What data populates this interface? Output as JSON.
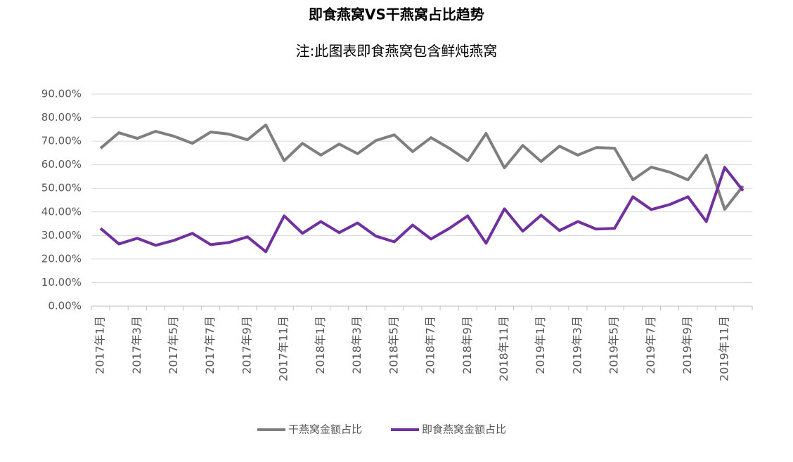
{
  "chart_data": {
    "type": "line",
    "title": "即食燕窝VS干燕窝占比趋势",
    "subtitle": "注:此图表即食燕窝包含鲜炖燕窝",
    "categories": [
      "2017年1月",
      null,
      "2017年3月",
      null,
      "2017年5月",
      null,
      "2017年7月",
      null,
      "2017年9月",
      null,
      "2017年11月",
      null,
      "2018年1月",
      null,
      "2018年3月",
      null,
      "2018年5月",
      null,
      "2018年7月",
      null,
      "2018年9月",
      null,
      "2018年11月",
      null,
      "2019年1月",
      null,
      "2019年3月",
      null,
      "2019年5月",
      null,
      "2019年7月",
      null,
      "2019年9月",
      null,
      "2019年11月",
      null
    ],
    "series": [
      {
        "name": "干燕窝金额占比",
        "color": "#7f7f7f",
        "values": [
          67.0,
          73.6,
          71.2,
          74.2,
          72.1,
          69.1,
          73.9,
          73.0,
          70.6,
          76.9,
          61.7,
          69.1,
          64.1,
          68.8,
          64.7,
          70.3,
          72.7,
          65.6,
          71.5,
          67.0,
          61.7,
          73.3,
          58.7,
          68.2,
          61.4,
          67.9,
          64.1,
          67.3,
          67.0,
          53.6,
          59.0,
          56.9,
          53.6,
          64.1,
          41.1,
          51.0
        ]
      },
      {
        "name": "即食燕窝金额占比",
        "color": "#7030a0",
        "values": [
          33.0,
          26.4,
          28.8,
          25.8,
          27.9,
          30.9,
          26.1,
          27.0,
          29.4,
          23.1,
          38.3,
          30.9,
          35.9,
          31.2,
          35.3,
          29.7,
          27.3,
          34.4,
          28.5,
          33.0,
          38.3,
          26.7,
          41.3,
          31.8,
          38.6,
          32.1,
          35.9,
          32.7,
          33.0,
          46.4,
          41.0,
          43.1,
          46.4,
          35.9,
          58.9,
          49.0
        ]
      }
    ],
    "ylim": [
      0,
      90
    ],
    "yticks": [
      {
        "value": 0,
        "label": "0.00%"
      },
      {
        "value": 10,
        "label": "10.00%"
      },
      {
        "value": 20,
        "label": "20.00%"
      },
      {
        "value": 30,
        "label": "30.00%"
      },
      {
        "value": 40,
        "label": "40.00%"
      },
      {
        "value": 50,
        "label": "50.00%"
      },
      {
        "value": 60,
        "label": "60.00%"
      },
      {
        "value": 70,
        "label": "70.00%"
      },
      {
        "value": 80,
        "label": "80.00%"
      },
      {
        "value": 90,
        "label": "90.00%"
      }
    ],
    "grid": true,
    "legend": "bottom"
  }
}
